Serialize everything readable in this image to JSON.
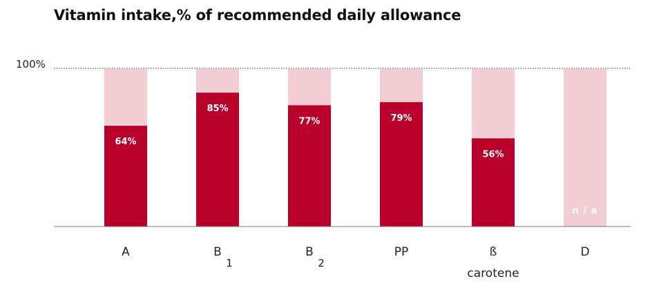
{
  "title": "Vitamin intake,% of recommended daily allowance",
  "chart_data": {
    "type": "bar",
    "title": "Vitamin intake,% of recommended daily allowance",
    "categories": [
      {
        "main": "A",
        "sub": ""
      },
      {
        "main": "B",
        "sub": "1"
      },
      {
        "main": "B",
        "sub": "2"
      },
      {
        "main": "PP",
        "sub": ""
      },
      {
        "main": "ß",
        "sub": "carotene"
      },
      {
        "main": "D",
        "sub": ""
      }
    ],
    "values": [
      64,
      85,
      77,
      79,
      56,
      null
    ],
    "value_labels": [
      "64%",
      "85%",
      "77%",
      "79%",
      "56%",
      "n / a"
    ],
    "reference_line": {
      "value": 100,
      "label": "100%"
    },
    "ylim": [
      0,
      100
    ],
    "grid": false,
    "colors": {
      "value": "#b8002a",
      "background": "#f2cdd4",
      "na_text": "#ffffff"
    }
  }
}
